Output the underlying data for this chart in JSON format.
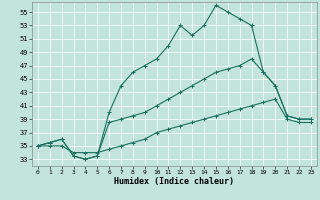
{
  "bg_color": "#c2e4dc",
  "line_color": "#1a7060",
  "xlabel": "Humidex (Indice chaleur)",
  "xticks": [
    0,
    1,
    2,
    3,
    4,
    5,
    6,
    7,
    8,
    9,
    10,
    11,
    12,
    13,
    14,
    15,
    16,
    17,
    18,
    19,
    20,
    21,
    22,
    23
  ],
  "yticks": [
    33,
    35,
    37,
    39,
    41,
    43,
    45,
    47,
    49,
    51,
    53,
    55
  ],
  "ylim": [
    32.0,
    56.5
  ],
  "xlim": [
    -0.5,
    23.5
  ],
  "series1_x": [
    0,
    1,
    2,
    3,
    4,
    5,
    6,
    7,
    8,
    9,
    10,
    11,
    12,
    13,
    14,
    15,
    16,
    17,
    18,
    19,
    20,
    21,
    22,
    23
  ],
  "series1_y": [
    35,
    35.5,
    36,
    33.5,
    33,
    33.5,
    40,
    44,
    46,
    47,
    48,
    50,
    53,
    51.5,
    53,
    56,
    55,
    54,
    53,
    46,
    44,
    39.5,
    39,
    39
  ],
  "series2_x": [
    0,
    1,
    2,
    3,
    4,
    5,
    6,
    7,
    8,
    9,
    10,
    11,
    12,
    13,
    14,
    15,
    16,
    17,
    18,
    19,
    20,
    21,
    22,
    23
  ],
  "series2_y": [
    35,
    35.5,
    36,
    33.5,
    33,
    33.5,
    38.5,
    39,
    39.5,
    40,
    41,
    42,
    43,
    44,
    45,
    46,
    46.5,
    47,
    48,
    46,
    44,
    39.5,
    39,
    39
  ],
  "series3_x": [
    0,
    1,
    2,
    3,
    4,
    5,
    6,
    7,
    8,
    9,
    10,
    11,
    12,
    13,
    14,
    15,
    16,
    17,
    18,
    19,
    20,
    21,
    22,
    23
  ],
  "series3_y": [
    35,
    35,
    35,
    34,
    34,
    34,
    34.5,
    35,
    35.5,
    36,
    37,
    37.5,
    38,
    38.5,
    39,
    39.5,
    40,
    40.5,
    41,
    41.5,
    42,
    39,
    38.5,
    38.5
  ]
}
